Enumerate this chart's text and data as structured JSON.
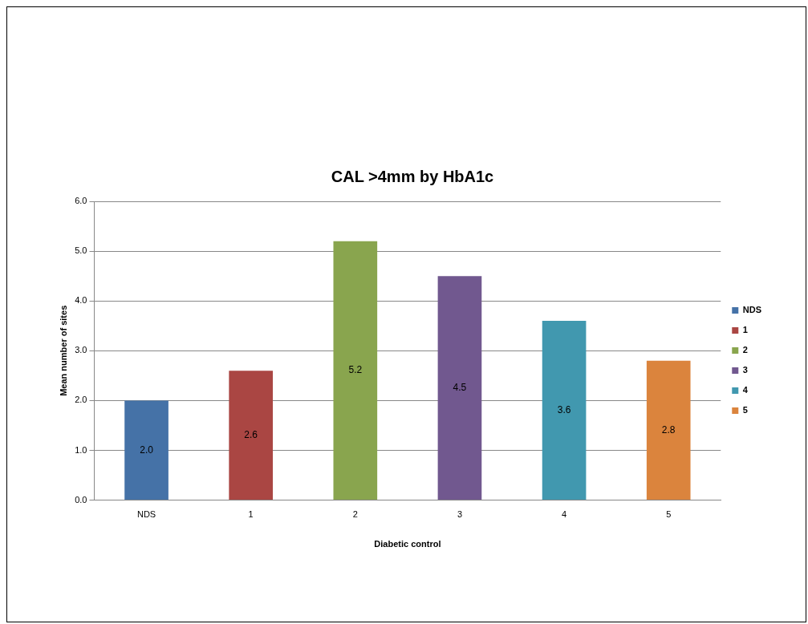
{
  "chart_data": {
    "type": "bar",
    "title": "CAL >4mm by HbA1c",
    "xlabel": "Diabetic control",
    "ylabel": "Mean number of sites",
    "categories": [
      "NDS",
      "1",
      "2",
      "3",
      "4",
      "5"
    ],
    "series": [
      {
        "name": "NDS",
        "color": "#4572a7",
        "values": [
          2.0,
          null,
          null,
          null,
          null,
          null
        ],
        "value_labels": [
          "2.0",
          null,
          null,
          null,
          null,
          null
        ]
      },
      {
        "name": "1",
        "color": "#aa4643",
        "values": [
          null,
          2.6,
          null,
          null,
          null,
          null
        ],
        "value_labels": [
          null,
          "2.6",
          null,
          null,
          null,
          null
        ]
      },
      {
        "name": "2",
        "color": "#89a54e",
        "values": [
          null,
          null,
          5.2,
          null,
          null,
          null
        ],
        "value_labels": [
          null,
          null,
          "5.2",
          null,
          null,
          null
        ]
      },
      {
        "name": "3",
        "color": "#71588f",
        "values": [
          null,
          null,
          null,
          4.5,
          null,
          null
        ],
        "value_labels": [
          null,
          null,
          null,
          "4.5",
          null,
          null
        ]
      },
      {
        "name": "4",
        "color": "#4198af",
        "values": [
          null,
          null,
          null,
          null,
          3.6,
          null
        ],
        "value_labels": [
          null,
          null,
          null,
          null,
          "3.6",
          null
        ]
      },
      {
        "name": "5",
        "color": "#db843d",
        "values": [
          null,
          null,
          null,
          null,
          null,
          2.8
        ],
        "value_labels": [
          null,
          null,
          null,
          null,
          null,
          "2.8"
        ]
      }
    ],
    "ylim": [
      0,
      6
    ],
    "yticks": [
      {
        "value": 0,
        "label": "0.0"
      },
      {
        "value": 1,
        "label": "1.0"
      },
      {
        "value": 2,
        "label": "2.0"
      },
      {
        "value": 3,
        "label": "3.0"
      },
      {
        "value": 4,
        "label": "4.0"
      },
      {
        "value": 5,
        "label": "5.0"
      },
      {
        "value": 6,
        "label": "6.0"
      }
    ],
    "grid": "y",
    "legend": "right"
  }
}
